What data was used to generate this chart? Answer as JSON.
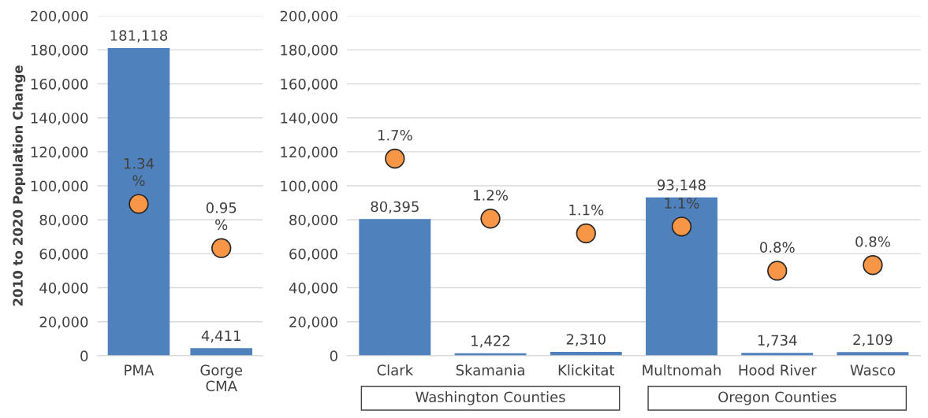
{
  "chart_data": [
    {
      "type": "bar",
      "ylabel": "2010 to 2020 Population Change",
      "categories": [
        "PMA",
        "Gorge\nCMA"
      ],
      "ylim": [
        0,
        200000
      ],
      "yticks": [
        {
          "value": 0,
          "label": "0"
        },
        {
          "value": 20000,
          "label": "20,000"
        },
        {
          "value": 40000,
          "label": "40,000"
        },
        {
          "value": 60000,
          "label": "60,000"
        },
        {
          "value": 80000,
          "label": "80,000"
        },
        {
          "value": 100000,
          "label": "100,000"
        },
        {
          "value": 120000,
          "label": "120,000"
        },
        {
          "value": 140000,
          "label": "140,000"
        },
        {
          "value": 160000,
          "label": "160,000"
        },
        {
          "value": 180000,
          "label": "180,000"
        },
        {
          "value": 200000,
          "label": "200,000"
        }
      ],
      "y2lim": [
        0,
        3
      ],
      "grid": "y",
      "series": [
        {
          "color": "#4f81bd",
          "values": [
            181118,
            4411
          ],
          "value_labels": [
            "181,118",
            "4,411"
          ]
        },
        {
          "type": "scatter",
          "axis": "y2",
          "color": "#f79646",
          "marker": "circle",
          "values": [
            1.34,
            0.95
          ],
          "value_labels": [
            "1.34\n%",
            "0.95\n%"
          ]
        }
      ]
    },
    {
      "type": "bar",
      "categories": [
        "Clark",
        "Skamania",
        "Klickitat",
        "Multnomah",
        "Hood River",
        "Wasco"
      ],
      "ylim": [
        0,
        200000
      ],
      "yticks": [
        {
          "value": 0,
          "label": "0"
        },
        {
          "value": 20000,
          "label": "20,000"
        },
        {
          "value": 40000,
          "label": "40,000"
        },
        {
          "value": 60000,
          "label": "60,000"
        },
        {
          "value": 80000,
          "label": "80,000"
        },
        {
          "value": 100000,
          "label": "100,000"
        },
        {
          "value": 120000,
          "label": "120,000"
        },
        {
          "value": 140000,
          "label": "140,000"
        },
        {
          "value": 160000,
          "label": "160,000"
        },
        {
          "value": 180000,
          "label": "180,000"
        },
        {
          "value": 200000,
          "label": "200,000"
        }
      ],
      "y2lim": [
        0,
        3
      ],
      "grid": "y",
      "annotations": [
        "Washington Counties",
        "Oregon Counties"
      ],
      "series": [
        {
          "color": "#4f81bd",
          "values": [
            80395,
            1422,
            2310,
            93148,
            1734,
            2109
          ],
          "value_labels": [
            "80,395",
            "1,422",
            "2,310",
            "93,148",
            "1,734",
            "2,109"
          ]
        },
        {
          "type": "scatter",
          "axis": "y2",
          "color": "#f79646",
          "marker": "circle",
          "values": [
            1.74,
            1.21,
            1.08,
            1.14,
            0.75,
            0.8
          ],
          "value_labels": [
            "1.7%",
            "1.2%",
            "1.1%",
            "1.1%",
            "0.8%",
            "0.8%"
          ]
        }
      ]
    }
  ]
}
